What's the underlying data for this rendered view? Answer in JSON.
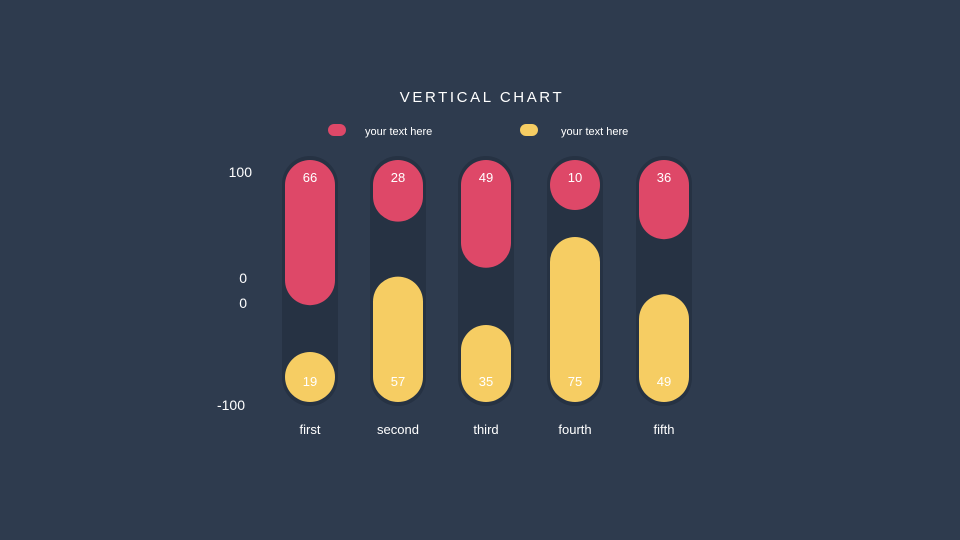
{
  "chart_data": {
    "type": "bar",
    "title": "VERTICAL CHART",
    "categories": [
      "first",
      "second",
      "third",
      "fourth",
      "fifth"
    ],
    "series": [
      {
        "name": "your text here",
        "color": "#de4868",
        "values": [
          66,
          28,
          49,
          10,
          36
        ]
      },
      {
        "name": "your text here",
        "color": "#f6cd63",
        "values": [
          19,
          57,
          35,
          75,
          49
        ]
      }
    ],
    "y_ticks": [
      "100",
      "0",
      "0",
      "-100"
    ],
    "ylim": [
      -100,
      100
    ],
    "legend_position": "top",
    "track_color": "#263243",
    "background": "#2e3b4e"
  }
}
